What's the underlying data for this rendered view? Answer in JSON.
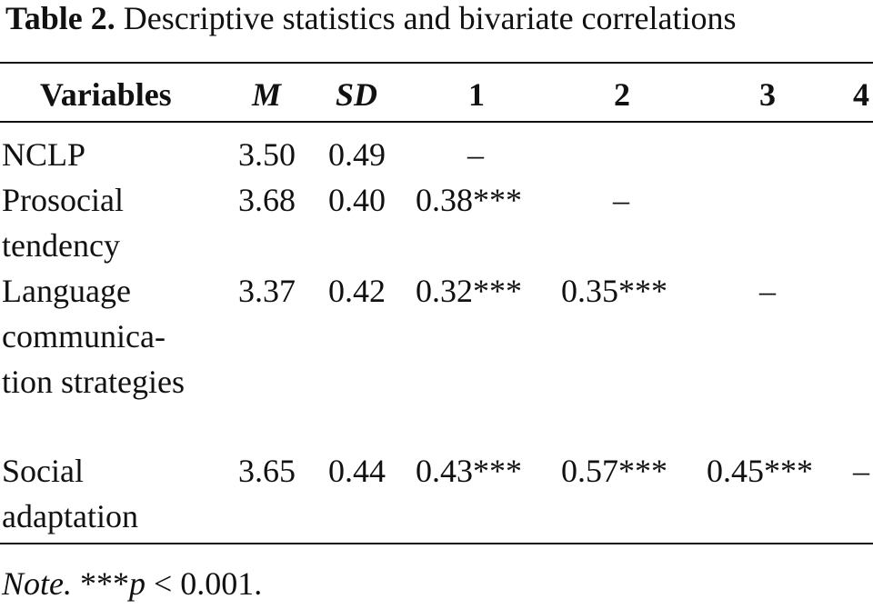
{
  "caption": {
    "label": "Table 2.",
    "title": "Descriptive statistics and bivariate correlations"
  },
  "table": {
    "headers": {
      "variables": "Variables",
      "m": "M",
      "sd": "SD",
      "c1": "1",
      "c2": "2",
      "c3": "3",
      "c4": "4"
    },
    "rows": [
      {
        "variable": "NCLP",
        "m": "3.50",
        "sd": "0.49",
        "c1": "–",
        "c2": "",
        "c3": "",
        "c4": ""
      },
      {
        "variable": "Prosocial tendency",
        "m": "3.68",
        "sd": "0.40",
        "c1": "0.38***",
        "c2": "–",
        "c3": "",
        "c4": ""
      },
      {
        "variable": "Language communica-tion strategies",
        "m": "3.37",
        "sd": "0.42",
        "c1": "0.32***",
        "c2": "0.35***",
        "c3": "–",
        "c4": ""
      },
      {
        "variable": "Social adaptation",
        "m": "3.65",
        "sd": "0.44",
        "c1": "0.43***",
        "c2": "0.57***",
        "c3": "0.45***",
        "c4": "–"
      }
    ]
  },
  "note": {
    "label": "Note.",
    "stars": "***",
    "p": "p",
    "rest": " < 0.001."
  }
}
